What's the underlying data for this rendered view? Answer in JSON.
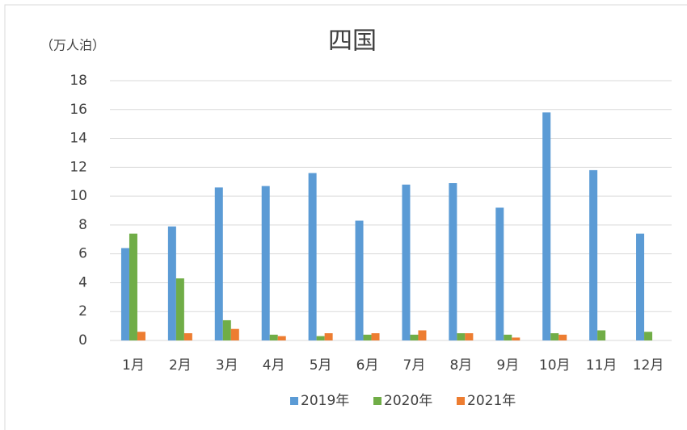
{
  "chart_data": {
    "type": "bar",
    "title": "四国",
    "y_label": "（万人泊）",
    "categories": [
      "1月",
      "2月",
      "3月",
      "4月",
      "5月",
      "6月",
      "7月",
      "8月",
      "9月",
      "10月",
      "11月",
      "12月"
    ],
    "series": [
      {
        "name": "2019年",
        "color": "#5b9bd5",
        "values": [
          6.4,
          7.9,
          10.6,
          10.7,
          11.6,
          8.3,
          10.8,
          10.9,
          9.2,
          15.8,
          11.8,
          7.4
        ]
      },
      {
        "name": "2020年",
        "color": "#70ad47",
        "values": [
          7.4,
          4.3,
          1.4,
          0.4,
          0.3,
          0.4,
          0.4,
          0.5,
          0.4,
          0.5,
          0.7,
          0.6
        ]
      },
      {
        "name": "2021年",
        "color": "#ed7d31",
        "values": [
          0.6,
          0.5,
          0.8,
          0.3,
          0.5,
          0.5,
          0.7,
          0.5,
          0.2,
          0.4,
          null,
          null
        ]
      }
    ],
    "ylim": [
      0,
      18
    ],
    "yticks": [
      0,
      2,
      4,
      6,
      8,
      10,
      12,
      14,
      16,
      18
    ],
    "grid": true,
    "legend": "bottom"
  }
}
